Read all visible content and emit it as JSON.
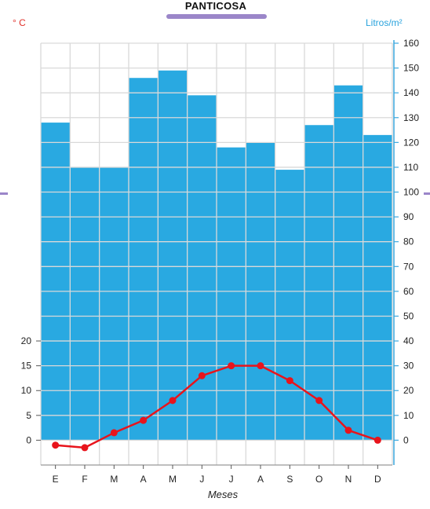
{
  "chart_data": {
    "type": "bar",
    "title": "PANTICOSA",
    "xlabel": "Meses",
    "categories": [
      "E",
      "F",
      "M",
      "A",
      "M",
      "J",
      "J",
      "A",
      "S",
      "O",
      "N",
      "D"
    ],
    "precipitation": {
      "unit_label": "Litros/m²",
      "values": [
        128,
        110,
        110,
        146,
        149,
        139,
        118,
        120,
        109,
        127,
        143,
        123
      ],
      "ylim": [
        -10,
        160
      ],
      "ticks": [
        0,
        10,
        20,
        30,
        40,
        50,
        60,
        70,
        80,
        90,
        100,
        110,
        120,
        130,
        140,
        150,
        160
      ],
      "color": "#29a9e1"
    },
    "temperature": {
      "unit_label": "° C",
      "values": [
        -1,
        -1.5,
        1.5,
        4,
        8,
        13,
        15,
        15,
        12,
        8,
        2,
        0
      ],
      "ylim": [
        -5,
        80
      ],
      "ticks": [
        0,
        5,
        10,
        15,
        20
      ],
      "color": "#e8141c"
    },
    "grid": true,
    "colors": {
      "grid": "#d9d9d9",
      "axis": "#3aa7de",
      "text": "#222222"
    }
  }
}
